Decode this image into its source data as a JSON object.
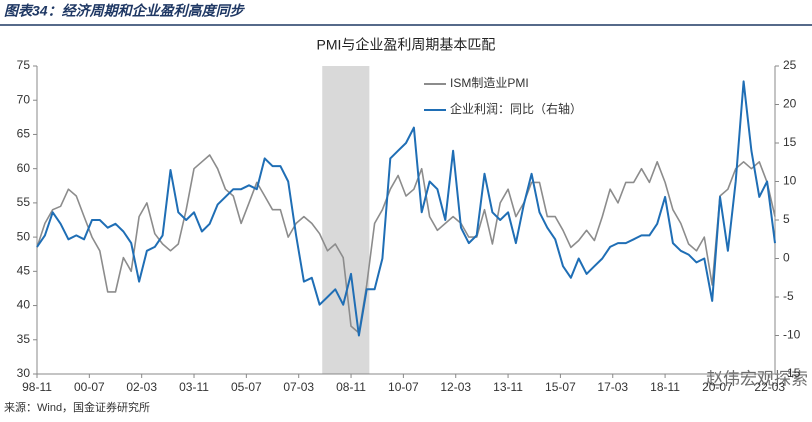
{
  "header": "图表34：经济周期和企业盈利高度同步",
  "source": "来源：Wind，国金证券研究所",
  "watermark": "赵伟宏观探索",
  "chart_data": {
    "type": "line",
    "title": "PMI与企业盈利周期基本匹配",
    "x": [
      "98-11",
      "99-02",
      "99-05",
      "99-08",
      "99-11",
      "00-02",
      "00-05",
      "00-08",
      "00-11",
      "01-02",
      "01-05",
      "01-08",
      "01-11",
      "02-02",
      "02-05",
      "02-08",
      "02-11",
      "03-02",
      "03-05",
      "03-08",
      "03-11",
      "04-02",
      "04-05",
      "04-08",
      "04-11",
      "05-02",
      "05-05",
      "05-08",
      "05-11",
      "06-02",
      "06-05",
      "06-08",
      "06-11",
      "07-02",
      "07-05",
      "07-08",
      "07-11",
      "08-02",
      "08-05",
      "08-08",
      "08-11",
      "09-02",
      "09-05",
      "09-08",
      "09-11",
      "10-02",
      "10-05",
      "10-08",
      "10-11",
      "11-02",
      "11-05",
      "11-08",
      "11-11",
      "12-02",
      "12-05",
      "12-08",
      "12-11",
      "13-02",
      "13-05",
      "13-08",
      "13-11",
      "14-02",
      "14-05",
      "14-08",
      "14-11",
      "15-02",
      "15-05",
      "15-08",
      "15-11",
      "16-02",
      "16-05",
      "16-08",
      "16-11",
      "17-02",
      "17-05",
      "17-08",
      "17-11",
      "18-02",
      "18-05",
      "18-08",
      "18-11",
      "19-02",
      "19-05",
      "19-08",
      "19-11",
      "20-02",
      "20-05",
      "20-08",
      "20-11",
      "21-02",
      "21-05",
      "21-08",
      "21-11",
      "22-02",
      "22-05"
    ],
    "series": [
      {
        "name": "ISM制造业PMI",
        "color": "#8c8c8c",
        "axis": "y",
        "values": [
          48.5,
          52,
          54,
          54.5,
          57,
          56,
          53,
          50,
          48,
          42,
          42,
          47,
          45,
          53,
          55,
          50.5,
          49,
          48,
          49,
          54,
          60,
          61,
          62,
          60,
          57,
          56,
          52,
          55,
          58,
          56,
          54,
          54,
          50,
          52,
          53,
          52,
          50.5,
          48,
          49,
          47,
          37,
          36,
          43,
          52,
          54,
          57,
          59,
          56,
          57,
          60,
          53,
          51,
          52,
          53,
          52,
          50,
          50,
          54,
          49,
          55,
          57,
          53,
          55,
          58,
          58,
          53,
          53,
          51,
          48.5,
          49.5,
          51,
          49.5,
          53,
          57,
          55,
          58,
          58,
          60,
          58,
          61,
          58,
          54,
          52,
          49,
          48,
          50,
          43,
          56,
          57,
          60,
          61,
          60,
          61,
          58,
          53
        ]
      },
      {
        "name": "企业利润：同比（右轴）",
        "color": "#1f6eb5",
        "axis": "y2",
        "values": [
          1.5,
          3,
          6,
          4.5,
          2.5,
          3,
          2.5,
          5,
          5,
          4,
          4.5,
          3.5,
          2,
          -3,
          1,
          1.5,
          3,
          11.5,
          6,
          5,
          6,
          3.5,
          4.5,
          7,
          8,
          9,
          9,
          9.5,
          9,
          13,
          12,
          12,
          10,
          3,
          -3,
          -2.5,
          -6,
          -5,
          -4,
          -6,
          -2,
          -10,
          -4,
          -4,
          0,
          13,
          14,
          15,
          17,
          6,
          10,
          9,
          5,
          14,
          4,
          2,
          3,
          11,
          6,
          5,
          6,
          2,
          7,
          11,
          6,
          4,
          2.5,
          -1,
          -2.5,
          0,
          -2,
          -1,
          0,
          1.5,
          2,
          2,
          2.5,
          3,
          3,
          4.5,
          8,
          2,
          1,
          0.5,
          -0.5,
          0,
          -5.5,
          8,
          1,
          10,
          23,
          14,
          8,
          10,
          2
        ]
      }
    ],
    "xlim": [
      "98-11",
      "22-05"
    ],
    "xticks": [
      "98-11",
      "00-07",
      "02-03",
      "03-11",
      "05-07",
      "07-03",
      "08-11",
      "10-07",
      "12-03",
      "13-11",
      "15-07",
      "17-03",
      "18-11",
      "20-07",
      "22-03"
    ],
    "ylim": [
      30,
      75
    ],
    "yticks": [
      30,
      35,
      40,
      45,
      50,
      55,
      60,
      65,
      70,
      75
    ],
    "y2lim": [
      -15,
      25
    ],
    "y2ticks": [
      -15,
      -10,
      -5,
      0,
      5,
      10,
      15,
      20,
      25
    ],
    "shaded": {
      "start": "07-12",
      "end": "09-06",
      "color": "#d9d9d9"
    },
    "grid": false
  }
}
